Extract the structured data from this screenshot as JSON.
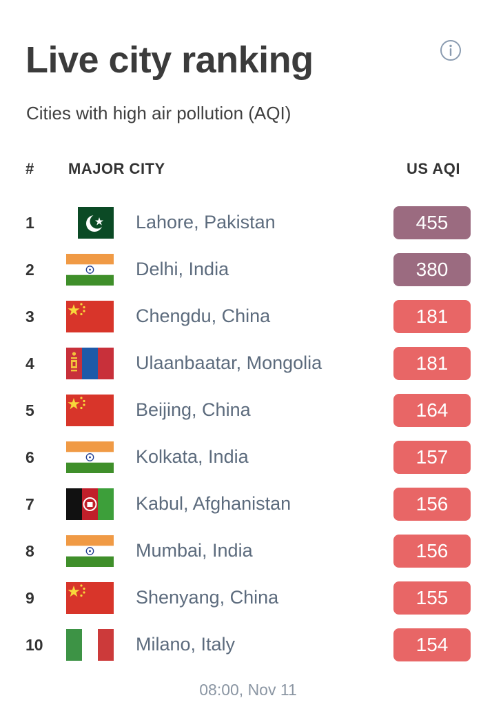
{
  "header": {
    "title": "Live city ranking",
    "subtitle": "Cities with high air pollution (AQI)"
  },
  "icons": {
    "info": "info-circle-icon"
  },
  "table": {
    "columns": {
      "rank": "#",
      "city": "MAJOR CITY",
      "aqi": "US AQI"
    },
    "rows": [
      {
        "rank": "1",
        "city": "Lahore, Pakistan",
        "aqi": "455",
        "flag": "pakistan-flag-icon",
        "level_color": "#9b6b80"
      },
      {
        "rank": "2",
        "city": "Delhi, India",
        "aqi": "380",
        "flag": "india-flag-icon",
        "level_color": "#9b6b80"
      },
      {
        "rank": "3",
        "city": "Chengdu, China",
        "aqi": "181",
        "flag": "china-flag-icon",
        "level_color": "#e86666"
      },
      {
        "rank": "4",
        "city": "Ulaanbaatar, Mongolia",
        "aqi": "181",
        "flag": "mongolia-flag-icon",
        "level_color": "#e86666"
      },
      {
        "rank": "5",
        "city": "Beijing, China",
        "aqi": "164",
        "flag": "china-flag-icon",
        "level_color": "#e86666"
      },
      {
        "rank": "6",
        "city": "Kolkata, India",
        "aqi": "157",
        "flag": "india-flag-icon",
        "level_color": "#e86666"
      },
      {
        "rank": "7",
        "city": "Kabul, Afghanistan",
        "aqi": "156",
        "flag": "afghanistan-flag-icon",
        "level_color": "#e86666"
      },
      {
        "rank": "8",
        "city": "Mumbai, India",
        "aqi": "156",
        "flag": "india-flag-icon",
        "level_color": "#e86666"
      },
      {
        "rank": "9",
        "city": "Shenyang, China",
        "aqi": "155",
        "flag": "china-flag-icon",
        "level_color": "#e86666"
      },
      {
        "rank": "10",
        "city": "Milano, Italy",
        "aqi": "154",
        "flag": "italy-flag-icon",
        "level_color": "#e86666"
      }
    ]
  },
  "footer": {
    "timestamp": "08:00, Nov 11"
  },
  "colors": {
    "hazardous": "#9b6b80",
    "unhealthy": "#e86666",
    "city_text": "#5c6b7d"
  }
}
